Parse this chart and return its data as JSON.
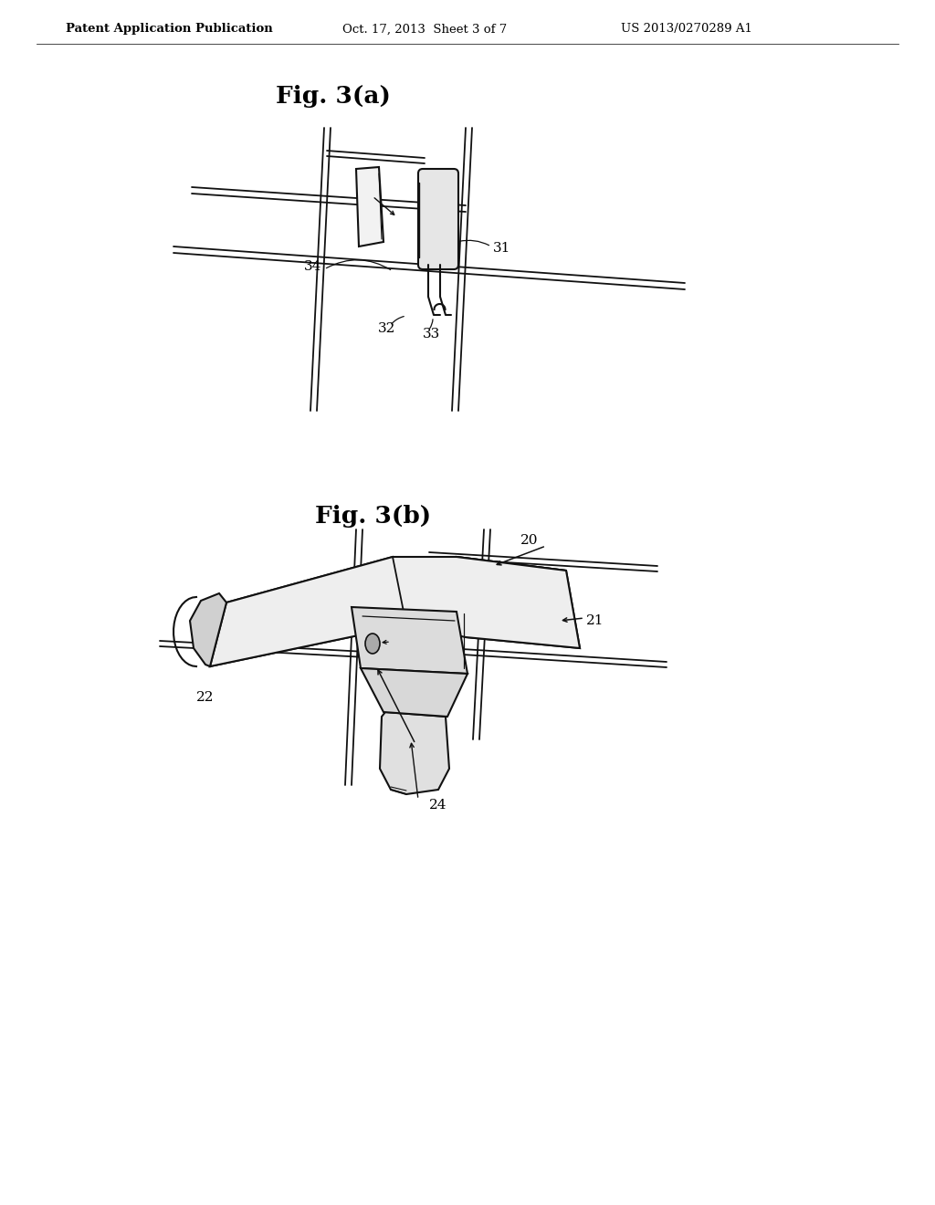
{
  "background_color": "#ffffff",
  "header_left": "Patent Application Publication",
  "header_mid": "Oct. 17, 2013  Sheet 3 of 7",
  "header_right": "US 2013/0270289 A1",
  "fig_a_title": "Fig. 3(a)",
  "fig_b_title": "Fig. 3(b)",
  "line_color": "#111111",
  "label_color": "#000000",
  "fig_width": 10.24,
  "fig_height": 13.2,
  "dpi": 100,
  "lw_grid": 1.3,
  "lw_part": 1.5,
  "lw_thin": 1.0
}
